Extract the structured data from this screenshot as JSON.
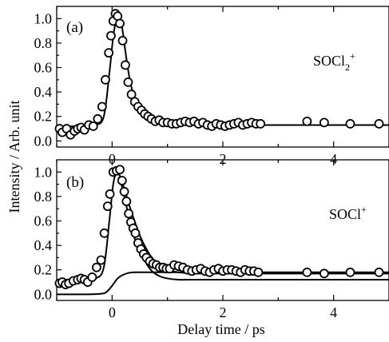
{
  "chart_data": [
    {
      "type": "scatter",
      "panel_label": "(a)",
      "species_label": {
        "base": "SOCl",
        "sub": "2",
        "sup": "+"
      },
      "ylim": [
        -0.05,
        1.1
      ],
      "xlim": [
        -1.0,
        5.0
      ],
      "grid": false,
      "series": [
        {
          "kind": "points",
          "x": [
            -0.95,
            -0.9,
            -0.82,
            -0.75,
            -0.68,
            -0.62,
            -0.56,
            -0.5,
            -0.42,
            -0.34,
            -0.26,
            -0.18,
            -0.12,
            -0.06,
            -0.02,
            0.02,
            0.06,
            0.1,
            0.14,
            0.19,
            0.24,
            0.29,
            0.35,
            0.41,
            0.47,
            0.53,
            0.59,
            0.65,
            0.71,
            0.78,
            0.85,
            0.92,
            1.0,
            1.08,
            1.16,
            1.24,
            1.32,
            1.4,
            1.48,
            1.56,
            1.64,
            1.72,
            1.8,
            1.88,
            1.96,
            2.04,
            2.12,
            2.2,
            2.28,
            2.36,
            2.44,
            2.52,
            2.6,
            2.68,
            3.52,
            3.83,
            4.3,
            4.82
          ],
          "y": [
            0.1,
            0.07,
            0.1,
            0.05,
            0.08,
            0.1,
            0.11,
            0.09,
            0.13,
            0.12,
            0.18,
            0.28,
            0.5,
            0.72,
            0.86,
            0.98,
            1.04,
            1.02,
            0.96,
            0.82,
            0.62,
            0.48,
            0.38,
            0.32,
            0.28,
            0.25,
            0.22,
            0.2,
            0.18,
            0.16,
            0.17,
            0.15,
            0.15,
            0.14,
            0.14,
            0.15,
            0.16,
            0.15,
            0.16,
            0.14,
            0.15,
            0.13,
            0.12,
            0.14,
            0.13,
            0.12,
            0.13,
            0.14,
            0.15,
            0.13,
            0.14,
            0.15,
            0.14,
            0.14,
            0.16,
            0.15,
            0.14,
            0.14
          ]
        },
        {
          "kind": "fit",
          "x": [
            -1.0,
            -0.6,
            -0.3,
            -0.15,
            -0.05,
            0.02,
            0.08,
            0.12,
            0.18,
            0.25,
            0.32,
            0.4,
            0.5,
            0.6,
            0.75,
            0.9,
            1.1,
            1.4,
            2.0,
            3.0,
            5.0
          ],
          "y": [
            0.12,
            0.12,
            0.13,
            0.2,
            0.55,
            0.85,
            1.0,
            1.02,
            0.93,
            0.7,
            0.5,
            0.36,
            0.27,
            0.22,
            0.18,
            0.16,
            0.14,
            0.13,
            0.13,
            0.13,
            0.13
          ]
        }
      ]
    },
    {
      "type": "scatter",
      "panel_label": "(b)",
      "species_label": {
        "base": "SOCl",
        "sub": "",
        "sup": "+"
      },
      "ylim": [
        -0.05,
        1.1
      ],
      "xlim": [
        -1.0,
        5.0
      ],
      "grid": false,
      "xlabel": "Delay time / ps",
      "series": [
        {
          "kind": "points",
          "x": [
            -0.95,
            -0.9,
            -0.84,
            -0.78,
            -0.7,
            -0.62,
            -0.56,
            -0.5,
            -0.44,
            -0.36,
            -0.28,
            -0.2,
            -0.14,
            -0.08,
            -0.04,
            0.02,
            0.08,
            0.14,
            0.18,
            0.22,
            0.26,
            0.3,
            0.34,
            0.38,
            0.42,
            0.47,
            0.52,
            0.57,
            0.62,
            0.68,
            0.74,
            0.8,
            0.86,
            0.92,
            0.98,
            1.04,
            1.12,
            1.2,
            1.28,
            1.36,
            1.44,
            1.52,
            1.6,
            1.68,
            1.76,
            1.84,
            1.92,
            2.0,
            2.08,
            2.16,
            2.24,
            2.32,
            2.4,
            2.48,
            2.56,
            2.64,
            3.52,
            3.83,
            4.3,
            4.82
          ],
          "y": [
            0.09,
            0.1,
            0.08,
            0.09,
            0.11,
            0.12,
            0.13,
            0.12,
            0.1,
            0.14,
            0.22,
            0.28,
            0.5,
            0.72,
            0.82,
            1.0,
            1.01,
            1.02,
            0.93,
            0.84,
            0.76,
            0.66,
            0.59,
            0.54,
            0.5,
            0.42,
            0.37,
            0.33,
            0.3,
            0.27,
            0.25,
            0.24,
            0.22,
            0.22,
            0.21,
            0.21,
            0.24,
            0.23,
            0.22,
            0.2,
            0.19,
            0.2,
            0.21,
            0.19,
            0.18,
            0.2,
            0.21,
            0.19,
            0.2,
            0.2,
            0.19,
            0.18,
            0.2,
            0.19,
            0.19,
            0.18,
            0.18,
            0.17,
            0.18,
            0.18
          ]
        },
        {
          "kind": "fit",
          "x": [
            -1.0,
            -0.6,
            -0.3,
            -0.15,
            -0.05,
            0.02,
            0.08,
            0.12,
            0.18,
            0.25,
            0.33,
            0.42,
            0.52,
            0.62,
            0.72,
            0.85,
            1.0,
            1.2,
            1.5,
            2.0,
            3.0,
            5.0
          ],
          "y": [
            0.12,
            0.12,
            0.13,
            0.22,
            0.6,
            0.9,
            1.0,
            0.99,
            0.92,
            0.82,
            0.7,
            0.58,
            0.46,
            0.37,
            0.3,
            0.24,
            0.2,
            0.18,
            0.17,
            0.17,
            0.17,
            0.17
          ]
        },
        {
          "kind": "fit",
          "x": [
            -1.0,
            -0.5,
            -0.2,
            -0.1,
            0.0,
            0.1,
            0.2,
            0.3,
            0.4,
            0.6,
            1.0,
            2.0,
            5.0
          ],
          "y": [
            0.0,
            0.0,
            0.005,
            0.02,
            0.07,
            0.13,
            0.16,
            0.175,
            0.18,
            0.18,
            0.18,
            0.18,
            0.18
          ]
        },
        {
          "kind": "fit",
          "x": [
            0.12,
            0.18,
            0.25,
            0.33,
            0.42,
            0.52,
            0.62,
            0.72,
            0.85,
            1.0,
            1.2,
            1.5,
            2.0,
            3.0,
            5.0
          ],
          "y": [
            0.96,
            0.88,
            0.74,
            0.58,
            0.44,
            0.33,
            0.25,
            0.19,
            0.15,
            0.13,
            0.12,
            0.12,
            0.12,
            0.12,
            0.12
          ]
        }
      ]
    }
  ],
  "shared": {
    "ylabel": "Intensity / Arb. unit",
    "x_ticks": [
      "0",
      "2",
      "4"
    ],
    "y_ticks": [
      "0.0",
      "0.2",
      "0.4",
      "0.6",
      "0.8",
      "1.0"
    ]
  }
}
